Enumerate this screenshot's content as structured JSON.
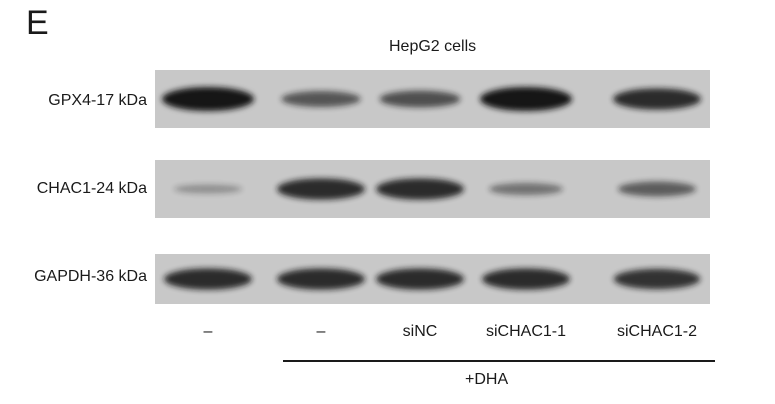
{
  "panel_letter": "E",
  "title": "HepG2 cells",
  "rows": [
    {
      "label": "GPX4-17 kDa",
      "intensity": [
        1.0,
        0.55,
        0.6,
        1.0,
        0.85
      ]
    },
    {
      "label": "CHAC1-24 kDa",
      "intensity": [
        0.15,
        0.85,
        0.85,
        0.35,
        0.5
      ]
    },
    {
      "label": "GAPDH-36 kDa",
      "intensity": [
        0.85,
        0.85,
        0.85,
        0.85,
        0.8
      ]
    }
  ],
  "lanes": [
    "–",
    "–",
    "siNC",
    "siCHAC1-1",
    "siCHAC1-2"
  ],
  "treatment_label": "+DHA",
  "colors": {
    "membrane": "#c8c8c8",
    "band": "#141414"
  }
}
